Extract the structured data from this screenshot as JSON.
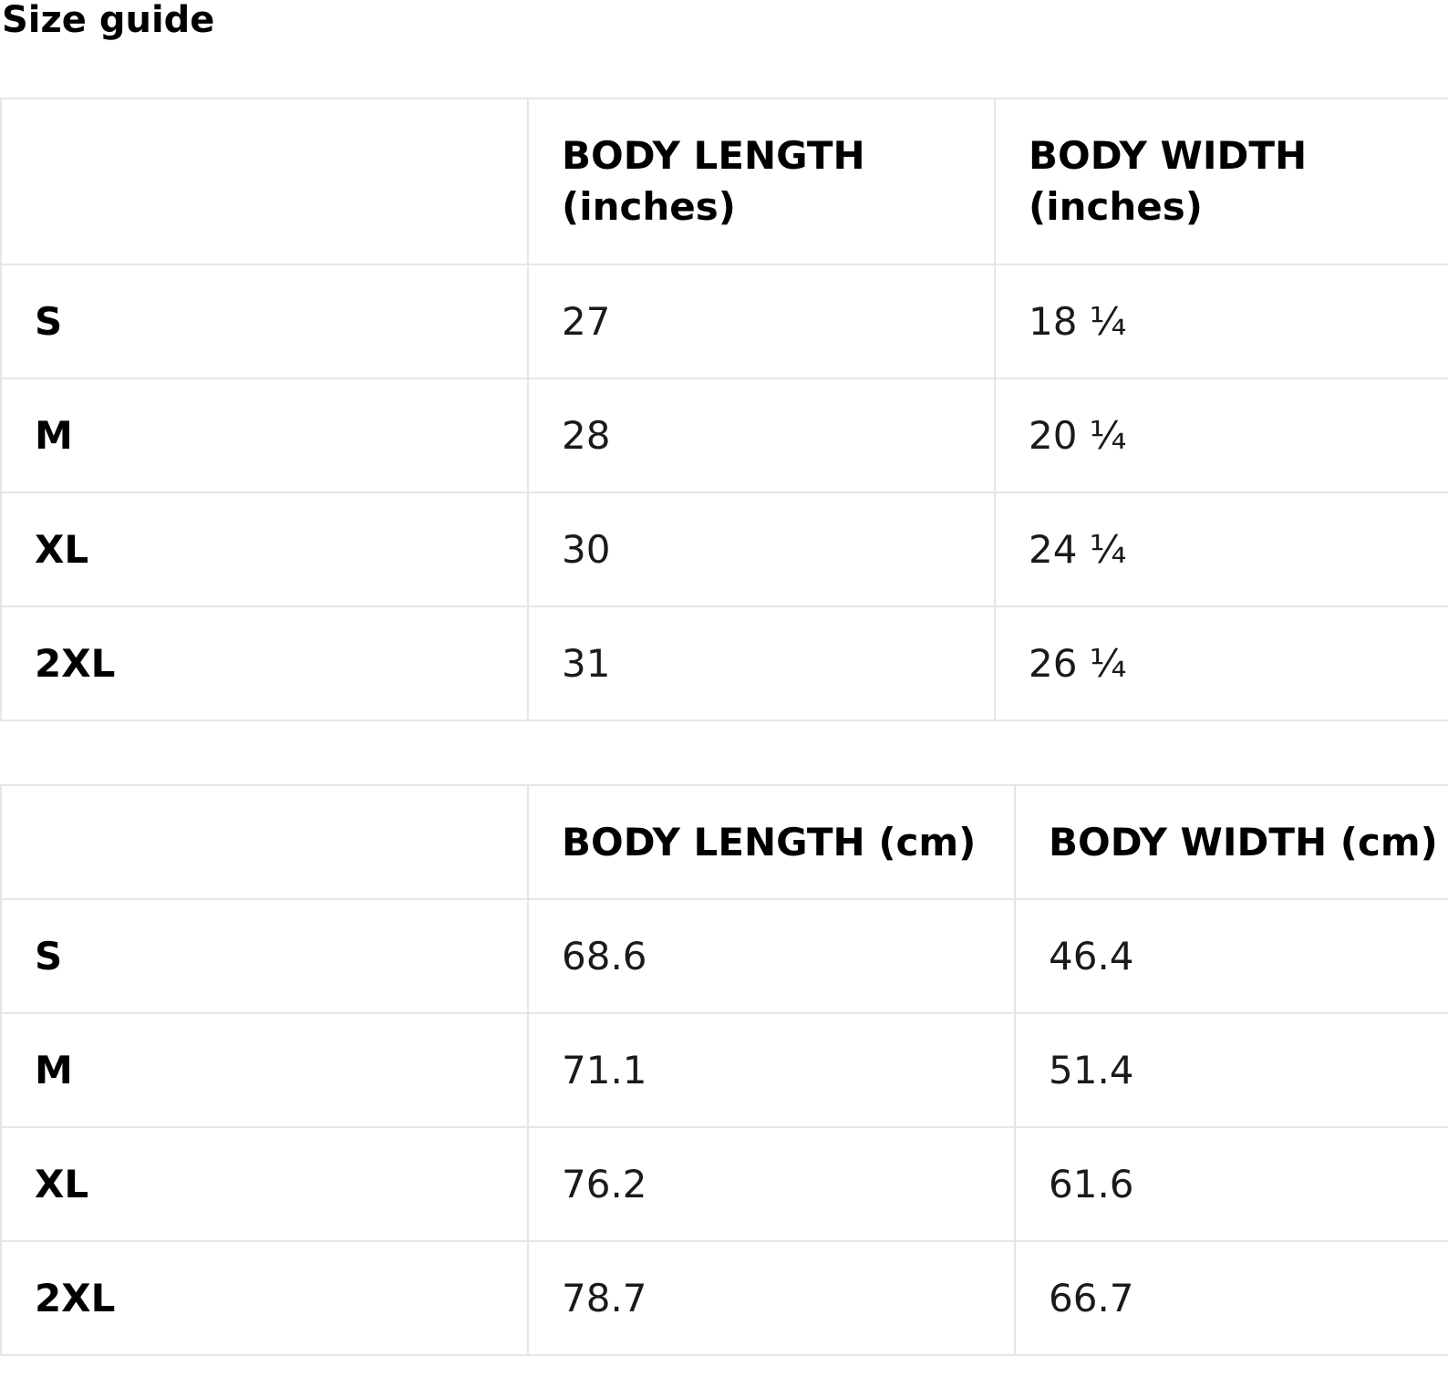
{
  "title": "Size guide",
  "inches_table": {
    "headers": [
      "",
      "BODY LENGTH\n(inches)",
      "BODY WIDTH\n(inches)"
    ],
    "header_length_line1": "BODY LENGTH",
    "header_length_line2": "(inches)",
    "header_width_line1": "BODY WIDTH",
    "header_width_line2": "(inches)",
    "rows": [
      {
        "size": "S",
        "length": "27",
        "width": "18 ¼"
      },
      {
        "size": "M",
        "length": "28",
        "width": "20 ¼"
      },
      {
        "size": "XL",
        "length": "30",
        "width": "24 ¼"
      },
      {
        "size": "2XL",
        "length": "31",
        "width": "26 ¼"
      }
    ]
  },
  "cm_table": {
    "header_length": "BODY LENGTH (cm)",
    "header_width": "BODY WIDTH (cm)",
    "rows": [
      {
        "size": "S",
        "length": "68.6",
        "width": "46.4"
      },
      {
        "size": "M",
        "length": "71.1",
        "width": "51.4"
      },
      {
        "size": "XL",
        "length": "76.2",
        "width": "61.6"
      },
      {
        "size": "2XL",
        "length": "78.7",
        "width": "66.7"
      }
    ]
  },
  "colors": {
    "border": "#e6e6e6",
    "text": "#000000",
    "background": "#ffffff"
  }
}
